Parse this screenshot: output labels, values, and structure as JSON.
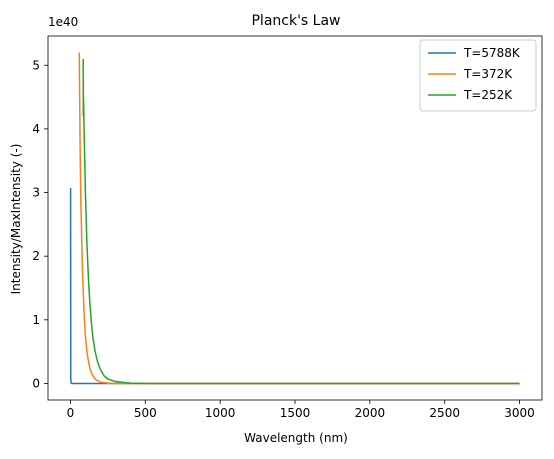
{
  "chart_data": {
    "type": "line",
    "title": "Planck's Law",
    "xlabel": "Wavelength (nm)",
    "ylabel": "Intensity/MaxIntensity (-)",
    "y_offset_label": "1e40",
    "xlim": [
      -150,
      3150
    ],
    "ylim": [
      -0.26,
      5.46
    ],
    "x_ticks": [
      0,
      500,
      1000,
      1500,
      2000,
      2500,
      3000
    ],
    "x_tick_labels": [
      "0",
      "500",
      "1000",
      "1500",
      "2000",
      "2500",
      "3000"
    ],
    "y_ticks": [
      0,
      1,
      2,
      3,
      4,
      5
    ],
    "y_tick_labels": [
      "0",
      "1",
      "2",
      "3",
      "4",
      "5"
    ],
    "grid": false,
    "legend_position": "top-right",
    "series": [
      {
        "name": "T=5788K",
        "color": "#1f77b4",
        "x": [
          1,
          2,
          4,
          8,
          15,
          30,
          3000
        ],
        "y": [
          3.07,
          0.1,
          0.01,
          0.0,
          0.0,
          0.0,
          0.0
        ]
      },
      {
        "name": "T=372K",
        "color": "#ff7f0e",
        "x": [
          59,
          60,
          65,
          70,
          80,
          90,
          100,
          110,
          120,
          130,
          140,
          150,
          170,
          200,
          250,
          300,
          500,
          1000,
          3000
        ],
        "y": [
          5.2,
          4.9,
          3.6,
          2.8,
          1.8,
          1.15,
          0.75,
          0.5,
          0.35,
          0.24,
          0.17,
          0.12,
          0.06,
          0.02,
          0.005,
          0.0,
          0.0,
          0.0,
          0.0
        ]
      },
      {
        "name": "T=252K",
        "color": "#2ca02c",
        "x": [
          85,
          86,
          87,
          88,
          90,
          100,
          110,
          120,
          130,
          140,
          150,
          165,
          180,
          200,
          225,
          250,
          300,
          400,
          500,
          1000,
          3000
        ],
        "y": [
          5.1,
          4.2,
          4.5,
          4.4,
          4.1,
          3.0,
          2.2,
          1.65,
          1.25,
          0.95,
          0.72,
          0.5,
          0.35,
          0.22,
          0.12,
          0.07,
          0.03,
          0.005,
          0.0,
          0.0,
          0.0
        ]
      }
    ]
  }
}
